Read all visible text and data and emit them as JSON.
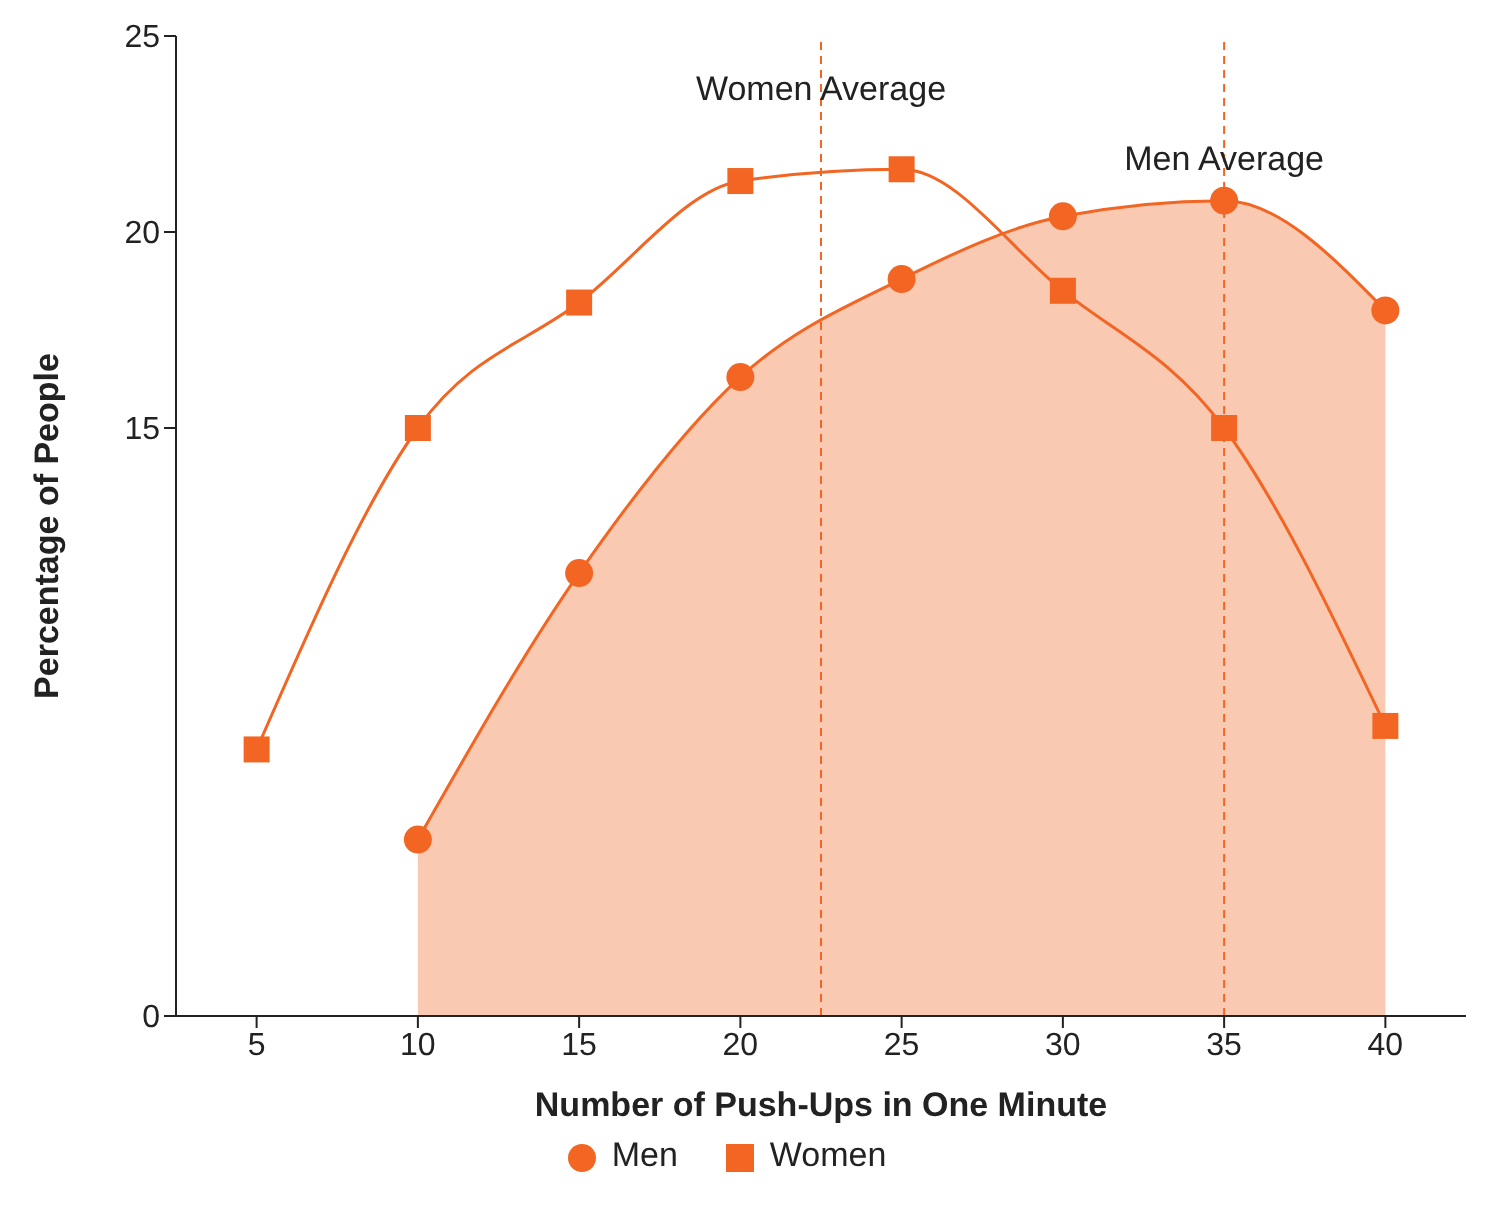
{
  "chart_data": {
    "type": "line",
    "xlabel": "Number of Push-Ups in One Minute",
    "ylabel": "Percentage of People",
    "x": [
      5,
      10,
      15,
      20,
      25,
      30,
      35,
      40
    ],
    "series": [
      {
        "name": "Men",
        "type": "area",
        "color": "#f26522",
        "marker": "circle",
        "values": [
          null,
          4.5,
          11.3,
          16.3,
          18.8,
          20.4,
          20.8,
          18.0
        ]
      },
      {
        "name": "Women",
        "color": "#f26522",
        "marker": "square",
        "values": [
          6.8,
          15,
          18.2,
          21.3,
          21.6,
          18.5,
          15,
          7.4
        ]
      }
    ],
    "xlim": [
      2.5,
      42.5
    ],
    "xticks": [
      5,
      10,
      15,
      20,
      25,
      30,
      35,
      40
    ],
    "ylim": [
      0,
      25
    ],
    "yticks": [
      0,
      15,
      20,
      25
    ],
    "ref_lines": [
      {
        "axis": "x",
        "value": 22.5,
        "label": "Women Average",
        "color": "#f26522",
        "line_style": "dashed"
      },
      {
        "axis": "x",
        "value": 35,
        "label": "Men Average",
        "color": "#f26522",
        "line_style": "dashed"
      }
    ],
    "legend": "bottom"
  }
}
